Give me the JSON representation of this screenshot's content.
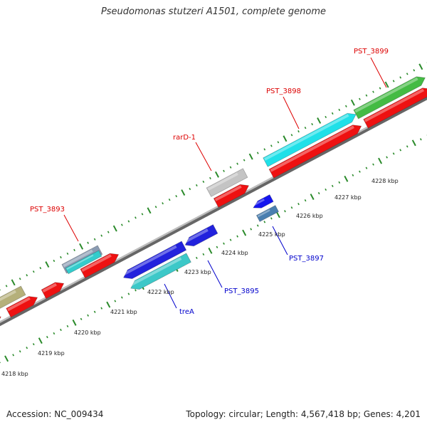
{
  "title": "Pseudomonas stutzeri A1501, complete genome",
  "footer": {
    "accession": "Accession: NC_009434",
    "summary": "Topology: circular; Length: 4,567,418 bp; Genes: 4,201"
  },
  "colors": {
    "backbone": "#8c8c8c",
    "tick_mark": "#2a8a2a",
    "forward_label": "#dd0000",
    "reverse_label": "#0000cc"
  },
  "axis": {
    "unit": "kbp",
    "tick_labels": [
      "4218 kbp",
      "4219 kbp",
      "4220 kbp",
      "4221 kbp",
      "4222 kbp",
      "4223 kbp",
      "4224 kbp",
      "4225 kbp",
      "4226 kbp",
      "4227 kbp",
      "4228 kbp"
    ]
  },
  "gene_labels": [
    {
      "text": "PST_3893",
      "strand": "forward"
    },
    {
      "text": "rarD-1",
      "strand": "forward"
    },
    {
      "text": "PST_3898",
      "strand": "forward"
    },
    {
      "text": "PST_3899",
      "strand": "forward"
    },
    {
      "text": "treA",
      "strand": "reverse"
    },
    {
      "text": "PST_3895",
      "strand": "reverse"
    },
    {
      "text": "PST_3897",
      "strand": "reverse"
    }
  ]
}
